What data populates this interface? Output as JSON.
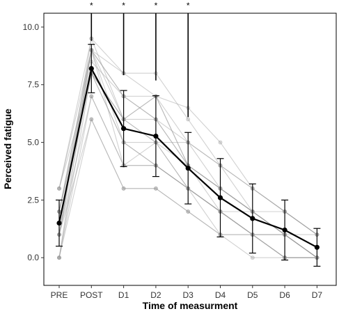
{
  "chart_data": {
    "type": "line",
    "categories": [
      "PRE",
      "POST",
      "D1",
      "D2",
      "D3",
      "D4",
      "D5",
      "D6",
      "D7"
    ],
    "xlabel": "Time of measurment",
    "ylabel": "Perceived fatigue",
    "ylim": [
      -1.2,
      10.6
    ],
    "yticks": [
      0.0,
      2.5,
      5.0,
      7.5,
      10.0
    ],
    "ytick_labels": [
      "0.0",
      "2.5",
      "5.0",
      "7.5",
      "10.0"
    ],
    "grid": false,
    "significance_markers": [
      {
        "category": "POST",
        "label": "*"
      },
      {
        "category": "D1",
        "label": "*"
      },
      {
        "category": "D2",
        "label": "*"
      },
      {
        "category": "D3",
        "label": "*"
      }
    ],
    "mean_series": {
      "values": [
        1.5,
        8.2,
        5.6,
        5.27,
        3.88,
        2.6,
        1.7,
        1.2,
        0.45
      ],
      "sd": [
        1.0,
        1.05,
        1.65,
        1.75,
        1.55,
        1.7,
        1.5,
        1.3,
        0.82
      ],
      "color": "#000000"
    },
    "individual_series": [
      [
        0,
        8,
        6,
        5,
        4,
        3,
        2,
        1,
        0
      ],
      [
        1,
        9,
        7,
        6,
        4,
        3,
        2,
        1,
        0
      ],
      [
        2,
        8,
        5,
        5,
        3,
        2,
        1,
        1,
        0
      ],
      [
        3,
        9.5,
        8,
        8,
        6,
        4,
        3,
        2,
        1
      ],
      [
        1,
        7,
        4,
        4,
        3,
        2,
        1,
        0,
        0
      ],
      [
        2,
        9,
        7,
        7,
        5,
        3,
        2,
        1,
        0
      ],
      [
        0,
        6,
        3,
        3,
        2,
        1,
        0,
        0,
        0
      ],
      [
        1,
        8,
        6,
        6,
        5,
        4,
        2,
        2,
        1
      ],
      [
        3,
        9,
        8,
        7,
        6.5,
        5,
        3,
        2,
        1
      ],
      [
        2,
        8,
        5,
        4,
        3,
        2,
        1,
        0,
        0
      ],
      [
        1,
        9.5,
        6,
        7,
        4,
        2,
        2,
        1,
        0
      ],
      [
        0,
        7,
        4,
        5,
        3,
        1,
        1,
        0,
        0
      ],
      [
        2,
        8.5,
        7,
        6,
        4,
        3,
        2,
        1,
        0
      ],
      [
        1,
        9,
        4,
        4,
        3,
        2,
        1,
        1,
        1
      ],
      [
        3,
        8,
        6,
        5,
        5,
        4,
        3,
        2,
        1
      ],
      [
        1,
        6,
        3,
        3,
        2,
        1,
        1,
        0,
        0
      ],
      [
        2,
        9,
        6,
        7,
        4,
        3,
        2,
        1,
        0
      ],
      [
        0,
        9,
        5,
        4,
        3,
        2,
        1,
        1,
        0
      ]
    ],
    "individual_color": "#9a9a9a"
  }
}
